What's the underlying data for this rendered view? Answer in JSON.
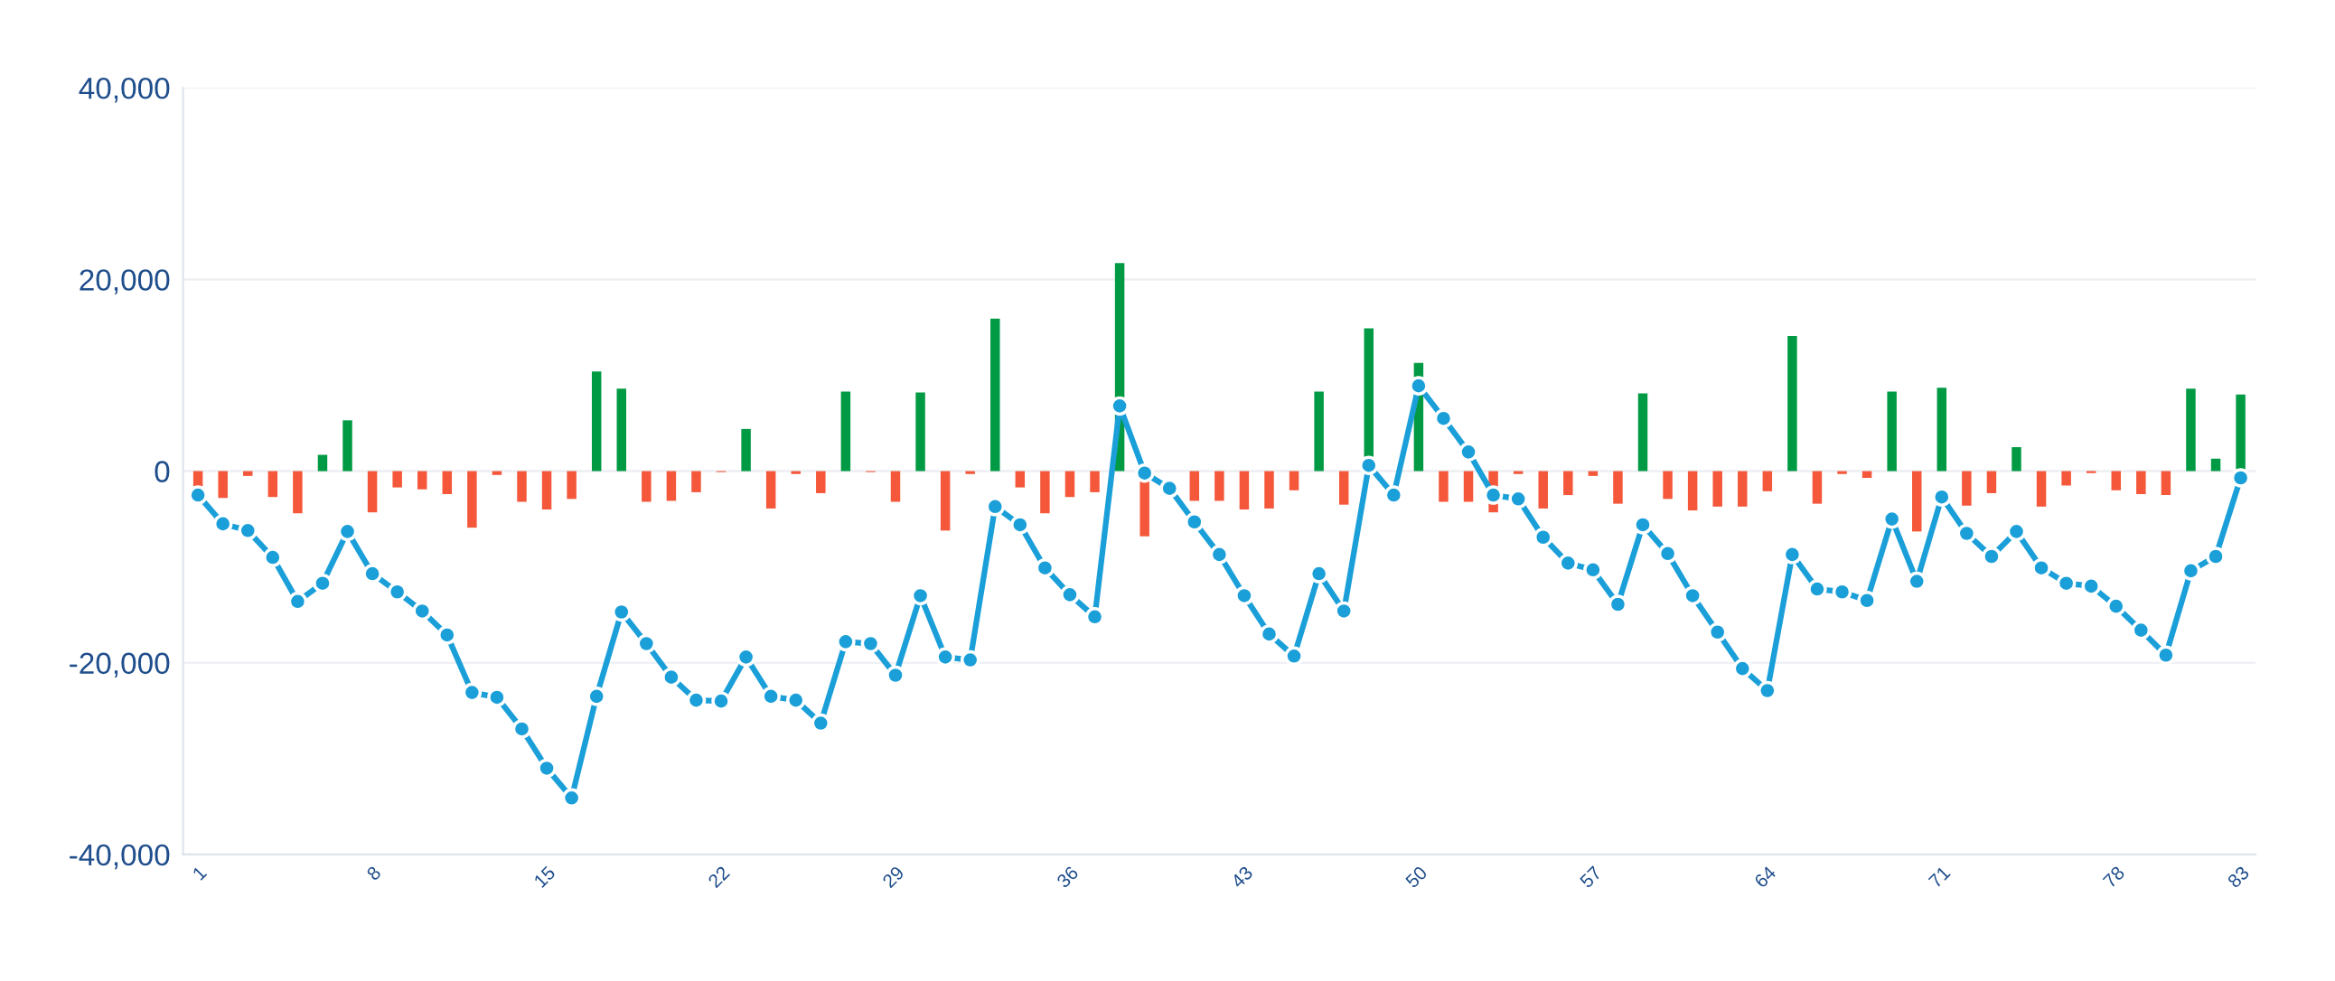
{
  "chart_data": {
    "type": "bar",
    "categories": [
      "1",
      null,
      null,
      null,
      null,
      null,
      null,
      "8",
      null,
      null,
      null,
      null,
      null,
      null,
      "15",
      null,
      null,
      null,
      null,
      null,
      null,
      "22",
      null,
      null,
      null,
      null,
      null,
      null,
      "29",
      null,
      null,
      null,
      null,
      null,
      null,
      "36",
      null,
      null,
      null,
      null,
      null,
      null,
      "43",
      null,
      null,
      null,
      null,
      null,
      null,
      "50",
      null,
      null,
      null,
      null,
      null,
      null,
      "57",
      null,
      null,
      null,
      null,
      null,
      null,
      "64",
      null,
      null,
      null,
      null,
      null,
      null,
      "71",
      null,
      null,
      null,
      null,
      null,
      null,
      "78",
      null,
      null,
      null,
      null,
      "83"
    ],
    "series": [
      {
        "values": [
          -1600,
          -2800,
          -500,
          -2700,
          -4400,
          1700,
          5300,
          -4300,
          -1700,
          -1900,
          -2400,
          -5900,
          -400,
          -3200,
          -4000,
          -2900,
          10400,
          8600,
          -3200,
          -3100,
          -2200,
          -100,
          4400,
          -3900,
          -300,
          -2300,
          8300,
          -100,
          -3200,
          8200,
          -6200,
          -300,
          15900,
          -1700,
          -4400,
          -2700,
          -2200,
          21700,
          -6800,
          null,
          -3100,
          -3100,
          -4000,
          -3900,
          -2000,
          8300,
          -3500,
          14900,
          null,
          11300,
          -3200,
          -3200,
          -4300,
          -300,
          -3900,
          -2500,
          -500,
          -3400,
          8100,
          -2900,
          -4100,
          -3700,
          -3700,
          -2100,
          14100,
          -3400,
          -300,
          -700,
          8300,
          -6300,
          8700,
          -3600,
          -2300,
          2500,
          -3700,
          -1500,
          -200,
          -2000,
          -2400,
          -2500,
          8600,
          1300,
          8000
        ],
        "colors": [
          "#f4573a",
          "#f4573a",
          "#f4573a",
          "#f4573a",
          "#f4573a",
          "#009a44",
          "#009a44",
          "#f4573a",
          "#f4573a",
          "#f4573a",
          "#f4573a",
          "#f4573a",
          "#f4573a",
          "#f4573a",
          "#f4573a",
          "#f4573a",
          "#009a44",
          "#009a44",
          "#f4573a",
          "#f4573a",
          "#f4573a",
          "#f4573a",
          "#009a44",
          "#f4573a",
          "#f4573a",
          "#f4573a",
          "#009a44",
          "#f4573a",
          "#f4573a",
          "#009a44",
          "#f4573a",
          "#f4573a",
          "#009a44",
          "#f4573a",
          "#f4573a",
          "#f4573a",
          "#f4573a",
          "#009a44",
          "#f4573a",
          "#f4573a",
          "#f4573a",
          "#f4573a",
          "#f4573a",
          "#f4573a",
          "#f4573a",
          "#009a44",
          "#f4573a",
          "#009a44",
          "#f4573a",
          "#009a44",
          "#f4573a",
          "#f4573a",
          "#f4573a",
          "#f4573a",
          "#f4573a",
          "#f4573a",
          "#f4573a",
          "#f4573a",
          "#009a44",
          "#f4573a",
          "#f4573a",
          "#f4573a",
          "#f4573a",
          "#f4573a",
          "#009a44",
          "#f4573a",
          "#f4573a",
          "#f4573a",
          "#009a44",
          "#f4573a",
          "#009a44",
          "#f4573a",
          "#f4573a",
          "#009a44",
          "#f4573a",
          "#f4573a",
          "#f4573a",
          "#f4573a",
          "#f4573a",
          "#f4573a",
          "#009a44",
          "#009a44",
          "#009a44"
        ]
      },
      {
        "type": "line",
        "color": "#1a9fd9",
        "values": [
          -2500,
          -5500,
          -6200,
          -9000,
          -13600,
          -11700,
          -6300,
          -10700,
          -12600,
          -14600,
          -17100,
          -23100,
          -23600,
          -26900,
          -31000,
          -34100,
          -23500,
          -14700,
          -18000,
          -21500,
          -23900,
          -24000,
          -19400,
          -23500,
          -23900,
          -26300,
          -17800,
          -18000,
          -21300,
          -13000,
          -19400,
          -19700,
          -3700,
          -5600,
          -10100,
          -12900,
          -15200,
          6800,
          -200,
          -1800,
          -5300,
          -8700,
          -13000,
          -17000,
          -19300,
          -10700,
          -14600,
          600,
          -2500,
          8900,
          5500,
          2000,
          -2500,
          -2900,
          -6900,
          -9600,
          -10300,
          -13900,
          -5600,
          -8600,
          -13000,
          -16800,
          -20600,
          -22900,
          -8700,
          -12300,
          -12600,
          -13500,
          -5000,
          -11500,
          -2700,
          -6500,
          -8900,
          -6300,
          -10100,
          -11700,
          -12000,
          -14100,
          -16600,
          -19200,
          -10400,
          -8900,
          -700
        ]
      }
    ],
    "ylim": [
      -40000,
      40000
    ],
    "yticks": [
      {
        "value": -40000,
        "label": "-40,000"
      },
      {
        "value": -20000,
        "label": "-20,000"
      },
      {
        "value": 0,
        "label": "0"
      },
      {
        "value": 20000,
        "label": "20,000"
      },
      {
        "value": 40000,
        "label": "40,000"
      }
    ],
    "grid": "y",
    "marker": "circle",
    "line_style": "solid"
  }
}
